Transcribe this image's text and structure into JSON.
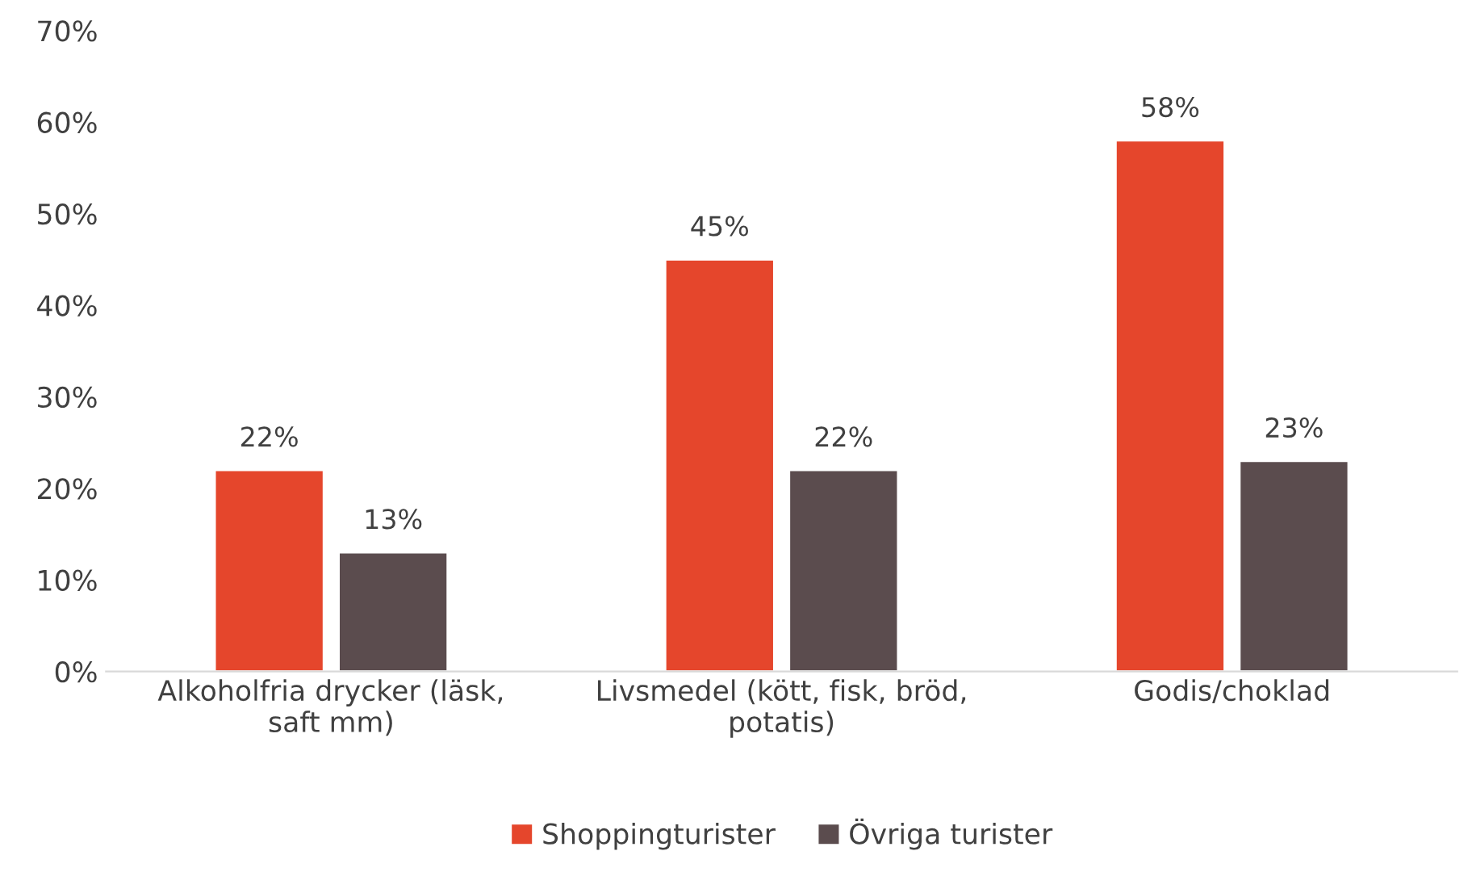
{
  "chart_data": {
    "type": "bar",
    "categories": [
      "Alkoholfria drycker (läsk, saft mm)",
      "Livsmedel (kött, fisk, bröd, potatis)",
      "Godis/choklad"
    ],
    "series": [
      {
        "name": "Shoppingturister",
        "color": "#e5462c",
        "values": [
          22,
          45,
          58
        ],
        "value_labels": [
          "22%",
          "45%",
          "58%"
        ]
      },
      {
        "name": "Övriga turister",
        "color": "#5b4c4e",
        "values": [
          13,
          22,
          23
        ],
        "value_labels": [
          "13%",
          "22%",
          "23%"
        ]
      }
    ],
    "ylim": [
      0,
      70
    ],
    "yticks": [
      {
        "value": 0,
        "label": "0%"
      },
      {
        "value": 10,
        "label": "10%"
      },
      {
        "value": 20,
        "label": "20%"
      },
      {
        "value": 30,
        "label": "30%"
      },
      {
        "value": 40,
        "label": "40%"
      },
      {
        "value": 50,
        "label": "50%"
      },
      {
        "value": 60,
        "label": "60%"
      },
      {
        "value": 70,
        "label": "70%"
      }
    ],
    "grid": false,
    "legend": "bottom"
  }
}
